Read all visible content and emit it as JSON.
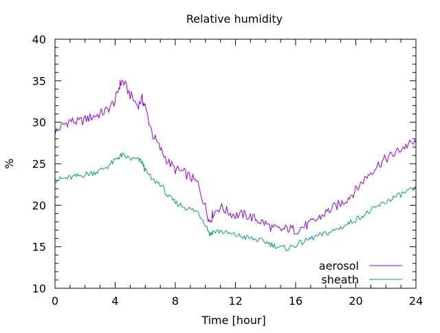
{
  "chart_data": {
    "type": "line",
    "title": "Relative humidity",
    "xlabel": "Time [hour]",
    "ylabel": "%",
    "xlim": [
      0,
      24
    ],
    "ylim": [
      10,
      40
    ],
    "x_ticks": [
      "0",
      "4",
      "8",
      "12",
      "16",
      "20",
      "24"
    ],
    "y_ticks": [
      "10",
      "15",
      "20",
      "25",
      "30",
      "35",
      "40"
    ],
    "grid": false,
    "legend_position": "bottom-right",
    "series": [
      {
        "name": "aerosol",
        "color": "#9400d3",
        "x": [
          0,
          0.5,
          1,
          1.5,
          2,
          2.5,
          3,
          3.5,
          4,
          4.3,
          4.5,
          5,
          5.5,
          5.8,
          6,
          6.5,
          7,
          7.5,
          8,
          8.5,
          9,
          9.5,
          10,
          10.3,
          10.5,
          11,
          11.5,
          12,
          12.5,
          13,
          13.5,
          14,
          14.5,
          15,
          15.5,
          16,
          16.5,
          17,
          17.5,
          18,
          18.5,
          19,
          19.5,
          20,
          20.5,
          21,
          21.5,
          22,
          22.5,
          23,
          23.5,
          24
        ],
        "y": [
          28.8,
          29.6,
          30.2,
          30.0,
          30.3,
          30.7,
          31.0,
          31.5,
          32.6,
          34.5,
          35.0,
          33.3,
          32.0,
          32.8,
          31.8,
          28.5,
          26.8,
          25.3,
          24.3,
          24.0,
          23.4,
          22.6,
          19.8,
          18.0,
          19.0,
          19.8,
          19.2,
          18.8,
          18.9,
          18.6,
          18.2,
          17.8,
          17.2,
          17.0,
          17.2,
          17.0,
          17.4,
          17.8,
          18.4,
          19.1,
          19.7,
          20.2,
          20.9,
          21.8,
          23.0,
          24.0,
          24.9,
          25.6,
          26.1,
          26.8,
          27.3,
          27.5
        ]
      },
      {
        "name": "sheath",
        "color": "#009e73",
        "x": [
          0,
          0.5,
          1,
          1.5,
          2,
          2.5,
          3,
          3.5,
          4,
          4.3,
          4.5,
          5,
          5.5,
          5.8,
          6,
          6.5,
          7,
          7.5,
          8,
          8.5,
          9,
          9.5,
          10,
          10.3,
          10.5,
          11,
          11.5,
          12,
          12.5,
          13,
          13.5,
          14,
          14.5,
          15,
          15.5,
          16,
          16.5,
          17,
          17.5,
          18,
          18.5,
          19,
          19.5,
          20,
          20.5,
          21,
          21.5,
          22,
          22.5,
          23,
          23.5,
          24
        ],
        "y": [
          23.0,
          23.2,
          23.3,
          23.5,
          23.7,
          23.9,
          24.2,
          24.7,
          25.4,
          25.9,
          26.0,
          25.6,
          25.5,
          25.2,
          24.2,
          23.0,
          22.6,
          21.1,
          20.3,
          19.9,
          19.5,
          19.2,
          17.8,
          16.5,
          16.8,
          16.9,
          16.6,
          16.4,
          16.2,
          16.0,
          15.8,
          15.6,
          15.2,
          14.9,
          14.8,
          15.2,
          15.6,
          16.0,
          16.3,
          16.6,
          16.9,
          17.3,
          17.8,
          18.3,
          18.8,
          19.3,
          19.9,
          20.4,
          20.9,
          21.3,
          21.7,
          22.0
        ]
      }
    ]
  }
}
